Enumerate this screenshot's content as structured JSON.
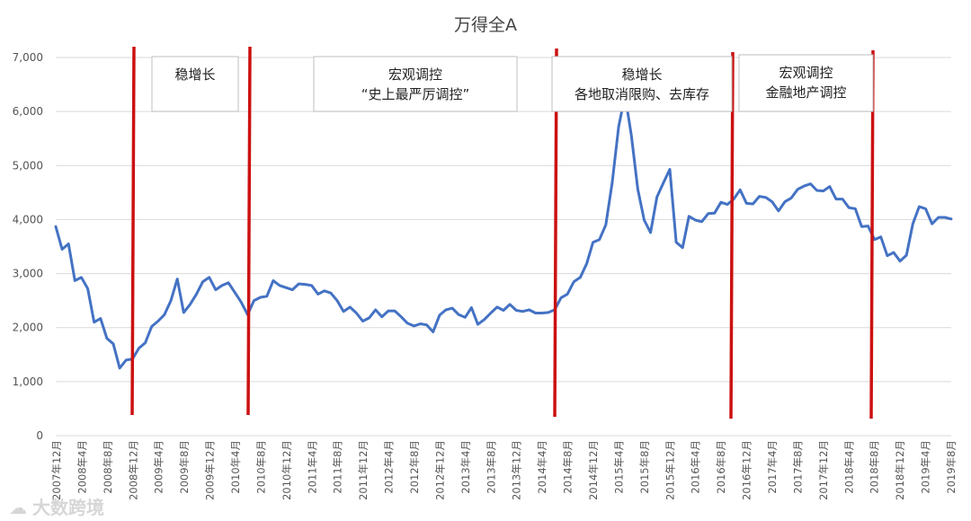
{
  "chart_data": {
    "type": "line",
    "title": "万得全A",
    "xlabel": "",
    "ylabel": "",
    "ylim": [
      0,
      7000
    ],
    "y_ticks": [
      0,
      1000,
      2000,
      3000,
      4000,
      5000,
      6000,
      7000
    ],
    "y_tick_labels": [
      "0",
      "1,000",
      "2,000",
      "3,000",
      "4,000",
      "5,000",
      "6,000",
      "7,000"
    ],
    "x_ticks": [
      "2007年12月",
      "2008年4月",
      "2008年8月",
      "2008年12月",
      "2009年4月",
      "2009年8月",
      "2009年12月",
      "2010年4月",
      "2010年8月",
      "2010年12月",
      "2011年4月",
      "2011年8月",
      "2011年12月",
      "2012年4月",
      "2012年8月",
      "2012年12月",
      "2013年4月",
      "2013年8月",
      "2013年12月",
      "2014年4月",
      "2014年8月",
      "2014年12月",
      "2015年4月",
      "2015年8月",
      "2015年12月",
      "2016年4月",
      "2016年8月",
      "2016年12月",
      "2017年4月",
      "2017年8月",
      "2017年12月",
      "2018年4月",
      "2018年8月",
      "2018年12月",
      "2019年4月",
      "2019年8月"
    ],
    "line_color": "#4472c4",
    "series": [
      {
        "values": [
          3870,
          3450,
          3550,
          2870,
          2930,
          2720,
          2100,
          2170,
          1800,
          1700,
          1250,
          1400,
          1420,
          1620,
          1720,
          2020,
          2120,
          2240,
          2500,
          2900,
          2280,
          2430,
          2620,
          2850,
          2930,
          2700,
          2780,
          2830,
          2650,
          2470,
          2240,
          2500,
          2560,
          2580,
          2870,
          2780,
          2740,
          2700,
          2810,
          2800,
          2780,
          2620,
          2680,
          2640,
          2500,
          2300,
          2380,
          2270,
          2120,
          2180,
          2330,
          2200,
          2310,
          2310,
          2200,
          2080,
          2030,
          2070,
          2050,
          1920,
          2230,
          2330,
          2360,
          2240,
          2190,
          2370,
          2060,
          2150,
          2270,
          2380,
          2320,
          2430,
          2320,
          2300,
          2330,
          2270,
          2270,
          2280,
          2330,
          2550,
          2620,
          2850,
          2930,
          3180,
          3580,
          3630,
          3900,
          4680,
          5720,
          6300,
          5550,
          4560,
          3990,
          3760,
          4420,
          4680,
          4930,
          3580,
          3480,
          4060,
          3990,
          3960,
          4110,
          4120,
          4320,
          4280,
          4380,
          4550,
          4300,
          4290,
          4430,
          4410,
          4330,
          4160,
          4330,
          4400,
          4560,
          4620,
          4660,
          4540,
          4530,
          4610,
          4380,
          4380,
          4220,
          4200,
          3870,
          3880,
          3630,
          3680,
          3330,
          3390,
          3230,
          3340,
          3920,
          4240,
          4200,
          3920,
          4040,
          4040,
          4010
        ]
      }
    ],
    "vertical_markers": [
      {
        "x_label": "2008年12月",
        "color": "#cc1111"
      },
      {
        "x_label": "2010年4月",
        "color": "#cc1111"
      },
      {
        "x_label": "2014年4月",
        "color": "#cc1111"
      },
      {
        "x_label": "2016年8月",
        "color": "#cc1111"
      },
      {
        "x_label": "2018年8月",
        "color": "#cc1111"
      }
    ],
    "annotations": [
      {
        "lines": [
          "稳增长"
        ]
      },
      {
        "lines": [
          "宏观调控",
          "“史上最严厉调控”"
        ]
      },
      {
        "lines": [
          "稳增长",
          "各地取消限购、去库存"
        ]
      },
      {
        "lines": [
          "宏观调控",
          "金融地产调控"
        ]
      }
    ],
    "grid": "horizontal"
  },
  "watermark": {
    "text": "大数跨境"
  }
}
